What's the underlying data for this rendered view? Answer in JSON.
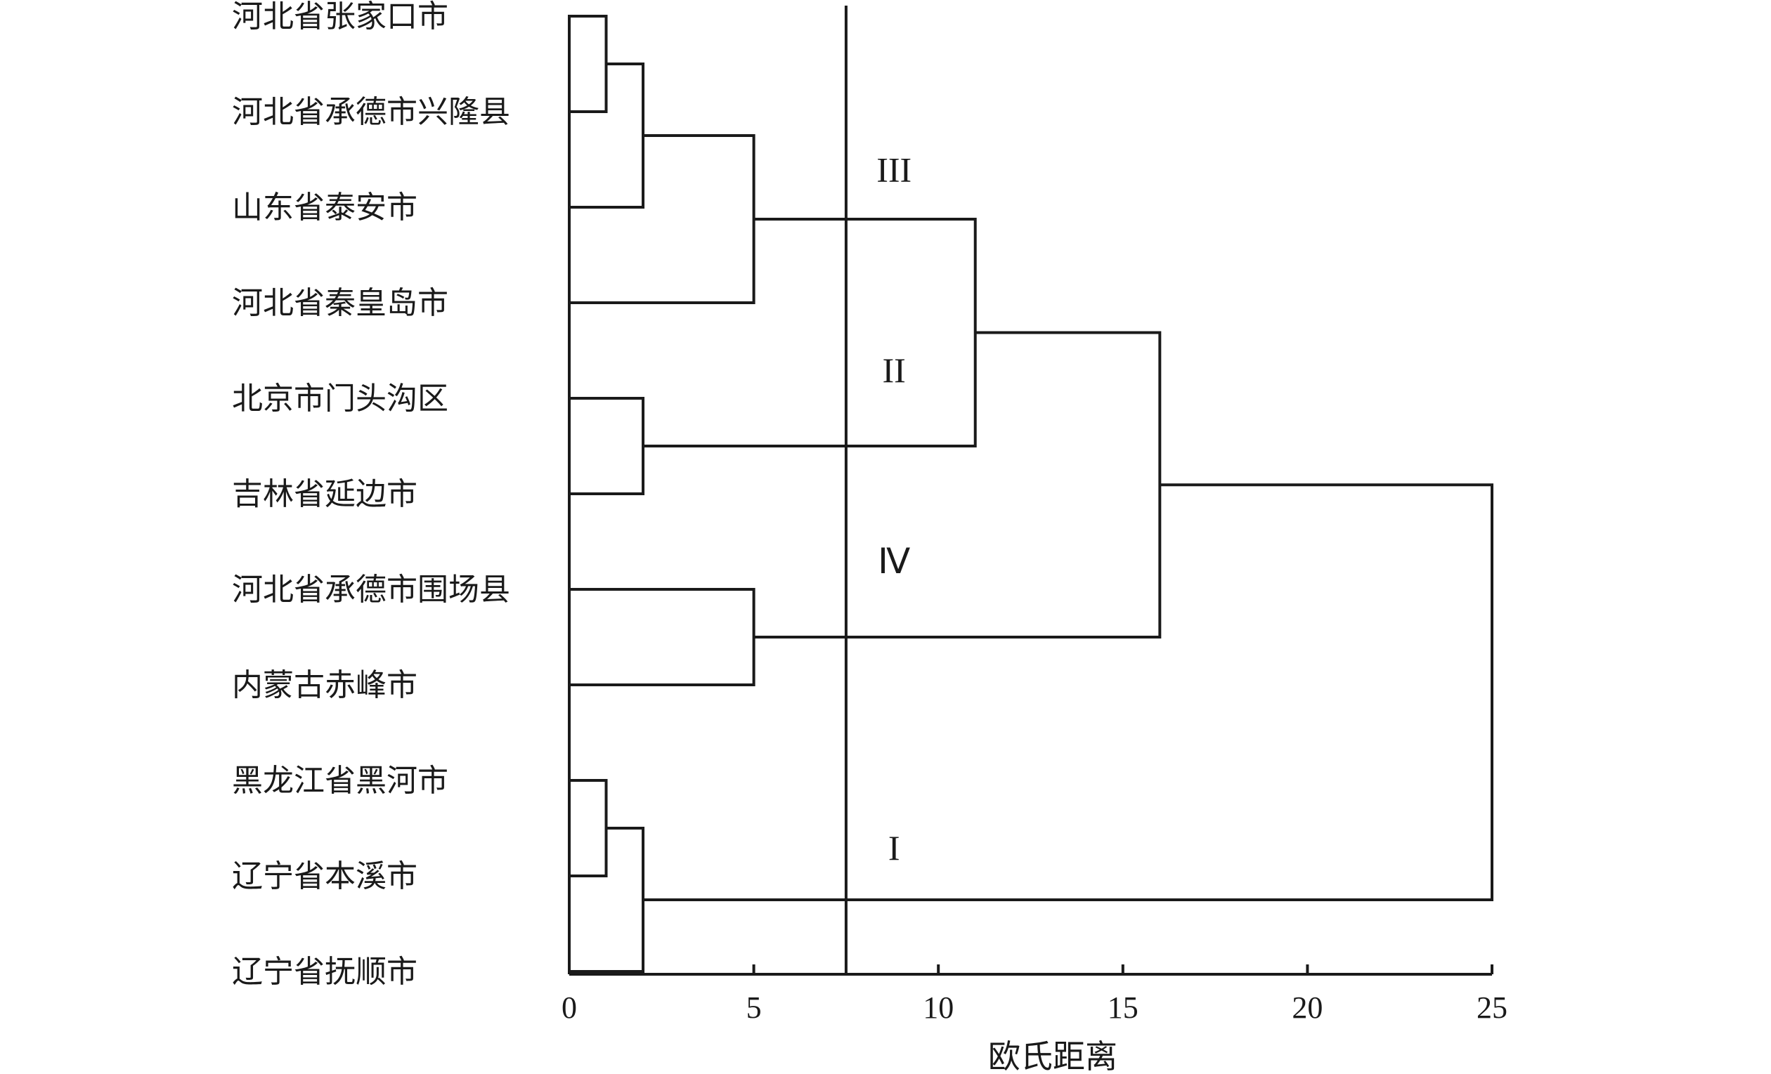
{
  "chart_data": {
    "type": "dendrogram",
    "title": "",
    "xlabel": "欧氏距离",
    "ylabel": "",
    "xlim": [
      0,
      25
    ],
    "x_ticks": [
      0,
      5,
      10,
      15,
      20,
      25
    ],
    "grid": false,
    "leaves": [
      "河北省张家口市",
      "河北省承德市兴隆县",
      "山东省泰安市",
      "河北省秦皇岛市",
      "北京市门头沟区",
      "吉林省延边市",
      "河北省承德市围场县",
      "内蒙古赤峰市",
      "黑龙江省黑河市",
      "辽宁省本溪市",
      "辽宁省抚顺市"
    ],
    "merges": [
      {
        "a": "L0",
        "b": "L1",
        "height": 1,
        "id": "A"
      },
      {
        "a": "A",
        "b": "L2",
        "height": 2,
        "id": "B"
      },
      {
        "a": "B",
        "b": "L3",
        "height": 5,
        "id": "C"
      },
      {
        "a": "L4",
        "b": "L5",
        "height": 2,
        "id": "D"
      },
      {
        "a": "C",
        "b": "D",
        "height": 11,
        "id": "E"
      },
      {
        "a": "L6",
        "b": "L7",
        "height": 5,
        "id": "F"
      },
      {
        "a": "E",
        "b": "F",
        "height": 16,
        "id": "G"
      },
      {
        "a": "L8",
        "b": "L9",
        "height": 1,
        "id": "H"
      },
      {
        "a": "H",
        "b": "L10",
        "height": 2,
        "id": "I"
      },
      {
        "a": "G",
        "b": "I",
        "height": 25,
        "id": "ROOT"
      }
    ],
    "cut_distance": 7.5,
    "cluster_labels": [
      {
        "text": "III",
        "x": 8.8,
        "near_leaf": 1.6
      },
      {
        "text": "II",
        "x": 8.8,
        "near_leaf": 3.7
      },
      {
        "text": "Ⅳ",
        "x": 8.8,
        "near_leaf": 5.7
      },
      {
        "text": "I",
        "x": 8.8,
        "near_leaf": 8.7
      }
    ]
  }
}
